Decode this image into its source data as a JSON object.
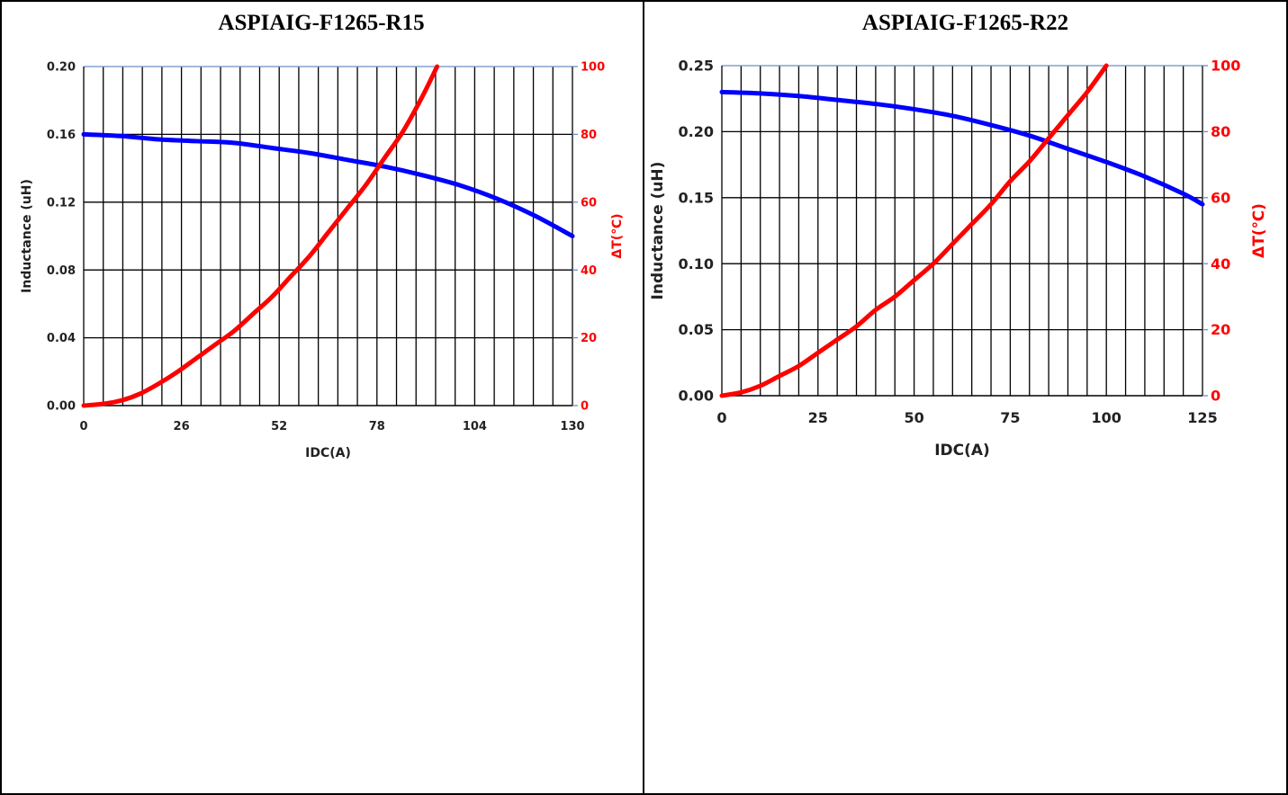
{
  "chart_data": [
    {
      "type": "line",
      "title": "ASPIAIG-F1265-R15",
      "xlabel": "IDC(A)",
      "ylabel": "Inductance  (uH)",
      "y2label": "ΔT(℃)",
      "xlim": [
        0,
        130
      ],
      "ylim": [
        0,
        0.2
      ],
      "y2lim": [
        0,
        100
      ],
      "xticks": [
        "0",
        "26",
        "52",
        "78",
        "104",
        "130"
      ],
      "yticks": [
        "0.00",
        "0.04",
        "0.08",
        "0.12",
        "0.16",
        "0.20"
      ],
      "y2ticks": [
        "0",
        "20",
        "40",
        "60",
        "80",
        "100"
      ],
      "grid": true,
      "series": [
        {
          "axis": "left",
          "color": "#0000ff",
          "x": [
            0,
            10,
            20,
            30,
            40,
            50,
            60,
            70,
            80,
            90,
            100,
            110,
            120,
            130
          ],
          "y": [
            0.16,
            0.159,
            0.157,
            0.156,
            0.155,
            0.152,
            0.149,
            0.145,
            0.141,
            0.136,
            0.13,
            0.122,
            0.112,
            0.1
          ]
        },
        {
          "axis": "right",
          "color": "#ff0000",
          "x": [
            0,
            5,
            10,
            15,
            20,
            25,
            30,
            35,
            40,
            45,
            50,
            55,
            60,
            65,
            70,
            75,
            80,
            85,
            90,
            94
          ],
          "y": [
            0,
            0.5,
            1.5,
            3.5,
            6.5,
            10,
            14,
            18,
            22,
            27,
            32,
            38,
            44,
            51,
            58,
            65,
            73,
            81,
            91,
            100
          ]
        }
      ]
    },
    {
      "type": "line",
      "title": "ASPIAIG-F1265-R22",
      "xlabel": "IDC(A)",
      "ylabel": "Inductance  (uH)",
      "y2label": "ΔT(℃)",
      "xlim": [
        0,
        125
      ],
      "ylim": [
        0,
        0.25
      ],
      "y2lim": [
        0,
        100
      ],
      "xticks": [
        "0",
        "25",
        "50",
        "75",
        "100",
        "125"
      ],
      "yticks": [
        "0.00",
        "0.05",
        "0.10",
        "0.15",
        "0.20",
        "0.25"
      ],
      "y2ticks": [
        "0",
        "20",
        "40",
        "60",
        "80",
        "100"
      ],
      "grid": true,
      "series": [
        {
          "axis": "left",
          "color": "#0000ff",
          "x": [
            0,
            10,
            20,
            30,
            40,
            50,
            60,
            70,
            80,
            90,
            100,
            110,
            120,
            125
          ],
          "y": [
            0.23,
            0.229,
            0.227,
            0.224,
            0.221,
            0.217,
            0.212,
            0.205,
            0.197,
            0.187,
            0.177,
            0.166,
            0.153,
            0.145
          ]
        },
        {
          "axis": "right",
          "color": "#ff0000",
          "x": [
            0,
            5,
            10,
            15,
            20,
            25,
            30,
            35,
            40,
            45,
            50,
            55,
            60,
            65,
            70,
            75,
            80,
            85,
            90,
            95,
            100
          ],
          "y": [
            0,
            1,
            3,
            6,
            9,
            13,
            17,
            21,
            26,
            30,
            35,
            40,
            46,
            52,
            58,
            65,
            71,
            78,
            85,
            92,
            100
          ]
        }
      ]
    }
  ]
}
